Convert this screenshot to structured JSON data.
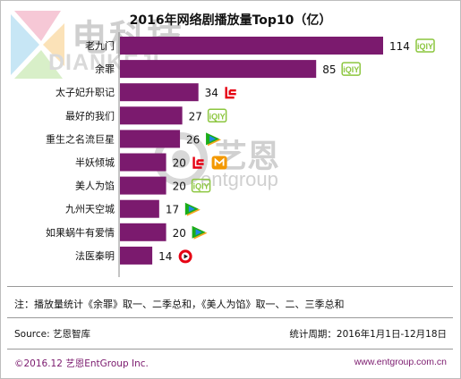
{
  "brand": {
    "logo_cn": "电科技",
    "logo_en": "DIANKEJI"
  },
  "watermark": {
    "cn": "艺恩",
    "en": "entgroup"
  },
  "chart_data": {
    "type": "bar",
    "orientation": "horizontal",
    "title": "2016年网络剧播放量Top10（亿）",
    "xlabel": "",
    "ylabel": "",
    "xlim": [
      0,
      114
    ],
    "grid": false,
    "legend": "none",
    "bar_color": "#7b1a6e",
    "categories": [
      "老九门",
      "余罪",
      "太子妃升职记",
      "最好的我们",
      "重生之名流巨星",
      "半妖倾城",
      "美人为馅",
      "九州天空城",
      "如果蜗牛有爱情",
      "法医秦明"
    ],
    "values": [
      114,
      85,
      34,
      27,
      26,
      20,
      20,
      17,
      20,
      14
    ],
    "platform_icons": [
      [
        "iqiyi-icon"
      ],
      [
        "iqiyi-icon"
      ],
      [
        "letv-icon"
      ],
      [
        "iqiyi-icon"
      ],
      [
        "tencent-video-icon"
      ],
      [
        "letv-icon",
        "mgtv-icon"
      ],
      [
        "iqiyi-icon"
      ],
      [
        "tencent-video-icon"
      ],
      [
        "tencent-video-icon"
      ],
      [
        "sohu-video-icon"
      ]
    ]
  },
  "notes": {
    "footnote": "注：播放量统计《余罪》取一、二季总和，《美人为馅》取一、二、三季总和",
    "source": "Source: 艺恩智库",
    "period": "统计周期：2016年1月1日-12月18日",
    "copyright": "©2016.12  艺恩EntGroup Inc.",
    "website": "www.entgroup.com.cn"
  },
  "colors": {
    "iqiyi": "#8cc63f",
    "letv": "#e60012",
    "tencent_green": "#1aad19",
    "tencent_blue": "#1e88e5",
    "tencent_orange": "#f5a623",
    "mgtv": "#f39800",
    "sohu": "#e60012"
  }
}
